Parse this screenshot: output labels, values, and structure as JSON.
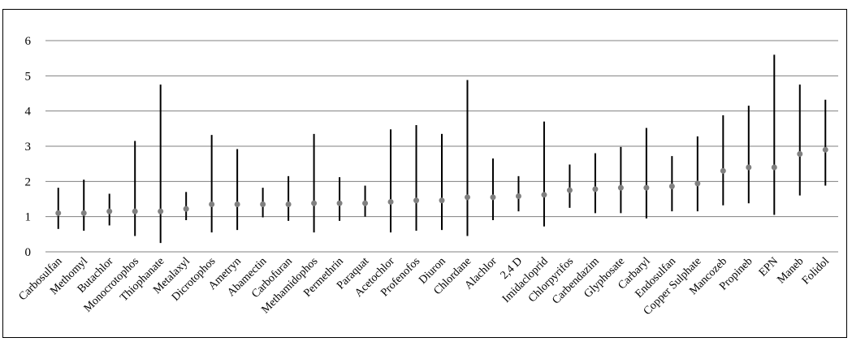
{
  "chart_data": {
    "type": "scatter",
    "title": "",
    "xlabel": "",
    "ylabel": "",
    "ylim": [
      0,
      6
    ],
    "yticks": [
      0,
      1,
      2,
      3,
      4,
      5,
      6
    ],
    "grid": "horizontal",
    "legend": "none",
    "marker_color": "#808080",
    "range_color": "#000000",
    "grid_color": "#808080",
    "categories": [
      "Carbosulfan",
      "Methomyl",
      "Butachlor",
      "Monocrotophos",
      "Thiophanate",
      "Metalaxyl",
      "Dicrotophos",
      "Ametryn",
      "Abamectin",
      "Carbofuran",
      "Methamidophos",
      "Permethrin",
      "Paraquat",
      "Acetochlor",
      "Profenofos",
      "Diuron",
      "Chlordane",
      "Alachlor",
      "2,4 D",
      "Imidacloprid",
      "Chlorpyrifos",
      "Carbendazim",
      "Glyphosate",
      "Carbaryl",
      "Endosulfan",
      "Copper Sulphate",
      "Mancozeb",
      "Propineb",
      "EPN",
      "Maneb",
      "Folidol"
    ],
    "values": [
      1.1,
      1.1,
      1.15,
      1.15,
      1.15,
      1.22,
      1.35,
      1.35,
      1.35,
      1.35,
      1.38,
      1.38,
      1.38,
      1.42,
      1.46,
      1.46,
      1.55,
      1.55,
      1.58,
      1.62,
      1.75,
      1.78,
      1.82,
      1.82,
      1.86,
      1.94,
      2.3,
      2.4,
      2.4,
      2.78,
      2.9
    ],
    "low": [
      0.65,
      0.6,
      0.75,
      0.45,
      0.25,
      0.9,
      0.55,
      0.62,
      0.98,
      0.88,
      0.55,
      0.88,
      1.0,
      0.55,
      0.6,
      0.62,
      0.45,
      0.9,
      1.15,
      0.72,
      1.25,
      1.1,
      1.1,
      0.95,
      1.15,
      1.15,
      1.32,
      1.38,
      1.05,
      1.6,
      1.88
    ],
    "high": [
      1.82,
      2.05,
      1.65,
      3.15,
      4.75,
      1.7,
      3.32,
      2.92,
      1.82,
      2.15,
      3.35,
      2.12,
      1.88,
      3.48,
      3.6,
      3.35,
      4.88,
      2.65,
      2.15,
      3.7,
      2.48,
      2.8,
      2.98,
      3.52,
      2.72,
      3.28,
      3.88,
      4.15,
      5.6,
      4.75,
      4.32
    ]
  }
}
